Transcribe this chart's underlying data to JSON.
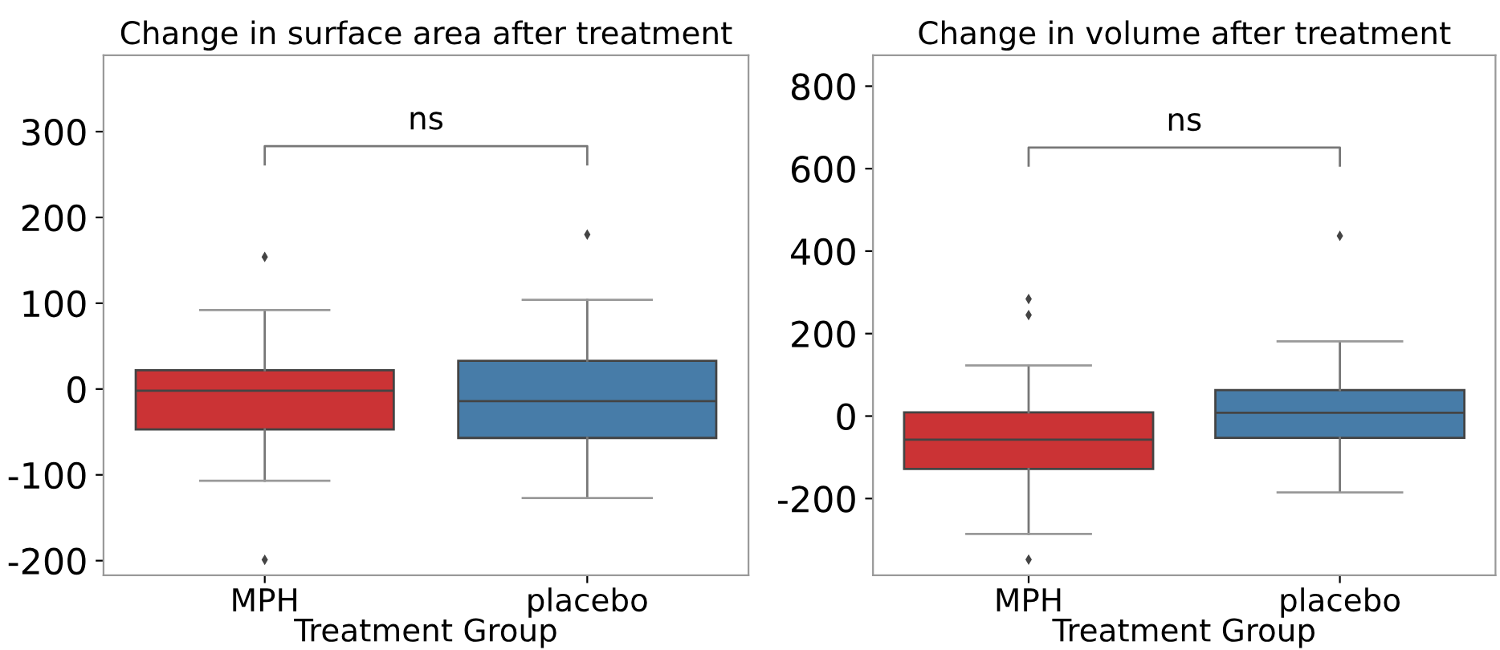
{
  "chart_data": [
    {
      "type": "box",
      "title": "Change in surface area after treatment",
      "xlabel": "Treatment Group",
      "categories": [
        "MPH",
        "placebo"
      ],
      "colors": [
        "#cb3335",
        "#477ca8"
      ],
      "ylim": [
        -217,
        389
      ],
      "yticks": [
        -200,
        -100,
        0,
        100,
        200,
        300
      ],
      "grid": false,
      "annotations": [
        "ns"
      ],
      "boxes": [
        {
          "low": -107,
          "q1": -47,
          "median": -2,
          "q3": 22,
          "high": 92,
          "outliers": [
            154,
            -199
          ]
        },
        {
          "low": -127,
          "q1": -57,
          "median": -14,
          "q3": 33,
          "high": 104,
          "outliers": [
            180
          ]
        }
      ]
    },
    {
      "type": "box",
      "title": "Change in volume after treatment",
      "xlabel": "Treatment Group",
      "categories": [
        "MPH",
        "placebo"
      ],
      "colors": [
        "#cb3335",
        "#477ca8"
      ],
      "ylim": [
        -386,
        875
      ],
      "yticks": [
        -200,
        0,
        200,
        400,
        600,
        800
      ],
      "grid": false,
      "annotations": [
        "ns"
      ],
      "boxes": [
        {
          "low": -286,
          "q1": -128,
          "median": -57,
          "q3": 9,
          "high": 123,
          "outliers": [
            284,
            245,
            -348
          ]
        },
        {
          "low": -185,
          "q1": -53,
          "median": 8,
          "q3": 63,
          "high": 181,
          "outliers": [
            437
          ]
        }
      ]
    }
  ]
}
